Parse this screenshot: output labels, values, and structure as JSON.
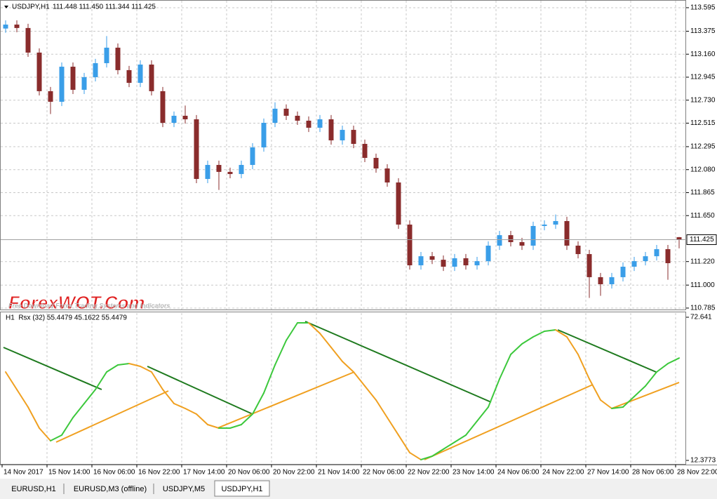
{
  "chart_data": [
    {
      "type": "candlestick",
      "title": "USDJPY,H1",
      "quote": "111.448 111.450 111.344 111.425",
      "up_color": "#3a9ee8",
      "down_color": "#8a2c2c",
      "open": [
        113.4,
        113.437,
        113.405,
        113.175,
        112.814,
        112.715,
        113.043,
        112.827,
        112.945,
        113.076,
        113.221,
        113.011,
        112.892,
        113.063,
        112.814,
        112.518,
        112.584,
        112.551,
        111.993,
        112.124,
        112.059,
        112.039,
        112.124,
        112.288,
        112.518,
        112.65,
        112.584,
        112.538,
        112.472,
        112.551,
        112.354,
        112.452,
        112.321,
        112.19,
        112.091,
        111.96,
        111.566,
        111.185,
        111.27,
        111.237,
        111.172,
        111.251,
        111.185,
        111.224,
        111.369,
        111.467,
        111.402,
        111.369,
        111.553,
        111.566,
        111.599,
        111.369,
        111.29,
        111.074,
        111.008,
        111.074,
        111.172,
        111.224,
        111.27,
        111.336,
        111.448
      ],
      "high": [
        113.477,
        113.477,
        113.445,
        113.215,
        112.854,
        113.083,
        113.083,
        112.985,
        113.116,
        113.33,
        113.261,
        113.051,
        113.103,
        113.103,
        112.854,
        112.624,
        112.68,
        112.591,
        112.164,
        112.164,
        112.099,
        112.164,
        112.328,
        112.558,
        112.71,
        112.69,
        112.624,
        112.578,
        112.591,
        112.591,
        112.492,
        112.492,
        112.361,
        112.23,
        112.131,
        112.0,
        111.606,
        111.31,
        111.31,
        111.277,
        111.291,
        111.291,
        111.264,
        111.409,
        111.507,
        111.507,
        111.442,
        111.593,
        111.606,
        111.66,
        111.639,
        111.409,
        111.33,
        111.114,
        111.114,
        111.212,
        111.264,
        111.31,
        111.376,
        111.376,
        111.45
      ],
      "low": [
        113.36,
        113.365,
        113.135,
        112.774,
        112.6,
        112.675,
        112.787,
        112.787,
        112.905,
        113.036,
        112.971,
        112.852,
        112.852,
        112.774,
        112.478,
        112.478,
        112.511,
        111.953,
        111.953,
        111.89,
        111.999,
        111.999,
        112.084,
        112.248,
        112.478,
        112.544,
        112.498,
        112.432,
        112.432,
        112.314,
        112.314,
        112.281,
        112.15,
        112.051,
        111.92,
        111.526,
        111.145,
        111.145,
        111.197,
        111.132,
        111.132,
        111.145,
        111.145,
        111.184,
        111.329,
        111.362,
        111.329,
        111.329,
        111.513,
        111.526,
        111.329,
        111.25,
        110.88,
        110.9,
        110.968,
        111.034,
        111.132,
        111.184,
        111.23,
        111.05,
        111.344
      ],
      "close": [
        113.437,
        113.405,
        113.175,
        112.814,
        112.715,
        113.043,
        112.827,
        112.945,
        113.076,
        113.221,
        113.011,
        112.892,
        113.063,
        112.814,
        112.518,
        112.584,
        112.551,
        111.993,
        112.124,
        112.059,
        112.039,
        112.124,
        112.288,
        112.518,
        112.65,
        112.584,
        112.538,
        112.472,
        112.551,
        112.354,
        112.452,
        112.321,
        112.19,
        112.091,
        111.96,
        111.566,
        111.185,
        111.27,
        111.237,
        111.172,
        111.251,
        111.185,
        111.224,
        111.369,
        111.467,
        111.402,
        111.369,
        111.553,
        111.566,
        111.599,
        111.369,
        111.29,
        111.074,
        111.008,
        111.074,
        111.172,
        111.224,
        111.27,
        111.336,
        111.205,
        111.425
      ],
      "last_price": 111.425,
      "last_price_color": "#a0a0a0",
      "ylim": [
        110.765,
        113.667
      ],
      "yticks": [
        113.595,
        113.375,
        {
          "value": 113.16,
          "label": "113.160"
        },
        112.945,
        {
          "value": 112.73,
          "label": "112.730"
        },
        112.515,
        112.295,
        {
          "value": 112.08,
          "label": "112.080"
        },
        111.865,
        {
          "value": 111.65,
          "label": "111.650"
        },
        {
          "value": 111.22,
          "label": "111.220"
        },
        {
          "value": 111.0,
          "label": "111.000"
        },
        110.785
      ],
      "grid": true
    },
    {
      "type": "line",
      "title": "H1  Rsx (32) 55.4479 45.1622 55.4479",
      "up_color": "#3cc83c",
      "down_color": "#f0a020",
      "values": [
        49.6,
        42.21,
        34.83,
        25.97,
        20.65,
        23.02,
        30.4,
        36.31,
        42.21,
        49.6,
        52.55,
        53.14,
        51.96,
        49.6,
        42.21,
        36.31,
        34.24,
        31.88,
        27.44,
        25.97,
        25.97,
        27.44,
        31.88,
        40.74,
        52.55,
        62.89,
        70.28,
        70.28,
        65.85,
        59.94,
        54.03,
        49.6,
        43.69,
        37.78,
        30.4,
        23.02,
        15.64,
        12.69,
        14.15,
        17.11,
        20.06,
        23.02,
        28.92,
        34.83,
        46.65,
        56.98,
        61.41,
        64.37,
        66.73,
        67.32,
        64.37,
        56.98,
        46.65,
        37.78,
        34.24,
        34.83,
        39.26,
        43.69,
        49.6,
        53.14,
        55.4479
      ],
      "trendlines": [
        {
          "color": "#1e7a1e",
          "from": [
            -0.19,
            59.94
          ],
          "to": [
            8.56,
            42.21
          ]
        },
        {
          "color": "#1e7a1e",
          "from": [
            12.63,
            51.96
          ],
          "to": [
            22,
            31.87
          ]
        },
        {
          "color": "#1e7a1e",
          "from": [
            26.69,
            70.87
          ],
          "to": [
            43.25,
            36.9
          ]
        },
        {
          "color": "#1e7a1e",
          "from": [
            49.19,
            67.32
          ],
          "to": [
            57.94,
            49.6
          ]
        },
        {
          "color": "#f0a020",
          "from": [
            4.5,
            20.06
          ],
          "to": [
            14.5,
            41.62
          ]
        },
        {
          "color": "#f0a020",
          "from": [
            18.88,
            25.97
          ],
          "to": [
            31.06,
            49.6
          ]
        },
        {
          "color": "#f0a020",
          "from": [
            37.31,
            12.67
          ],
          "to": [
            52.31,
            44.28
          ]
        },
        {
          "color": "#f0a020",
          "from": [
            54,
            34.24
          ],
          "to": [
            60,
            45.17
          ]
        }
      ],
      "ylim": [
        10.605,
        74.709
      ],
      "yticks": [
        72.641,
        12.3773
      ],
      "grid": false
    }
  ],
  "time_labels": [
    "14 Nov 2017",
    "15 Nov 14:00",
    "16 Nov 06:00",
    "16 Nov 22:00",
    "17 Nov 14:00",
    "20 Nov 06:00",
    "20 Nov 22:00",
    "21 Nov 14:00",
    "22 Nov 06:00",
    "22 Nov 22:00",
    "23 Nov 14:00",
    "24 Nov 06:00",
    "24 Nov 22:00",
    "27 Nov 14:00",
    "28 Nov 06:00",
    "28 Nov 22:00"
  ],
  "watermark": {
    "title": "ForexWOT.Com",
    "subtitle": "Free Download Forex Trading Systems and Indicators"
  },
  "tabs": [
    "EURUSD,H1",
    "EURUSD,M3 (offline)",
    "USDJPY,M5",
    "USDJPY,H1"
  ]
}
